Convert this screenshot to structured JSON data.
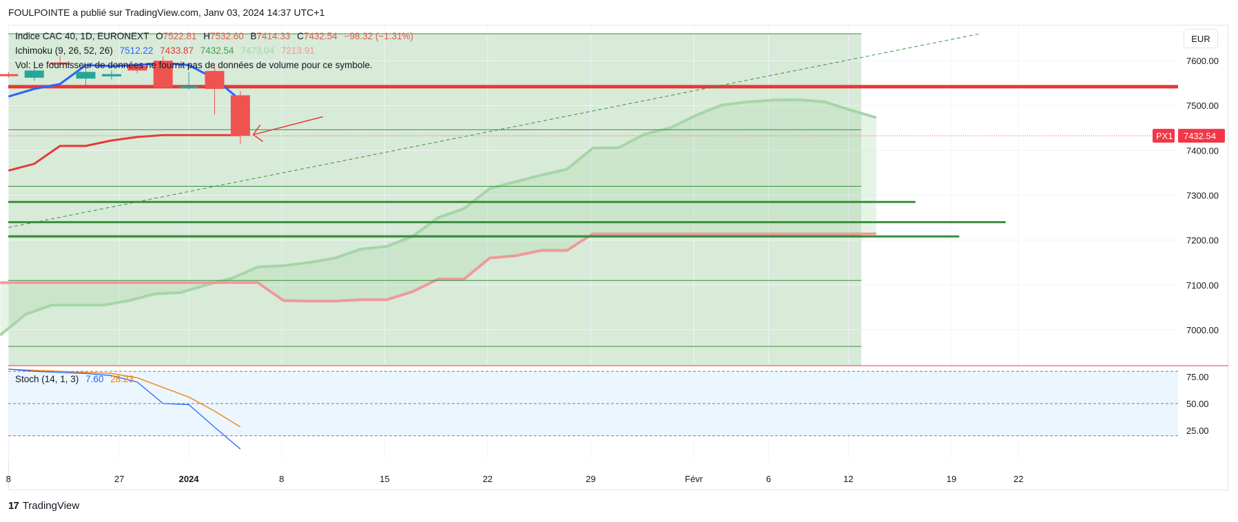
{
  "header": {
    "publisher_text": "FOULPOINTE a publié sur TradingView.com, Janv 03, 2024 14:37 UTC+1"
  },
  "legend": {
    "symbol": "Indice CAC 40, 1D, EURONEXT",
    "o_label": "O",
    "o_value": "7522.81",
    "h_label": "H",
    "h_value": "7532.60",
    "b_label": "B",
    "b_value": "7414.33",
    "c_label": "C",
    "c_value": "7432.54",
    "change": "−98.32 (−1.31%)",
    "ichimoku_label": "Ichimoku (9, 26, 52, 26)",
    "ichimoku_values": [
      "7512.22",
      "7433.87",
      "7432.54",
      "7473.04",
      "7213.91"
    ],
    "ichimoku_colors": [
      "#2962ff",
      "#e53935",
      "#43a047",
      "#a5d6a7",
      "#ef9a9a"
    ],
    "vol_text": "Vol: Le fournisseur de données ne fournit pas de données de volume pour ce symbole.",
    "stoch_label": "Stoch (14, 1, 3)",
    "stoch_k": "7.60",
    "stoch_d": "28.23"
  },
  "price_badge": {
    "tag": "PX1",
    "value": "7432.54"
  },
  "currency": "EUR",
  "footer": {
    "brand": "TradingView",
    "logo": "17"
  },
  "colors": {
    "up": "#26a69a",
    "down": "#ef5350",
    "tenkan": "#2962ff",
    "kijun": "#e53935",
    "span_a": "#a5d6a7",
    "span_b": "#ef9a9a",
    "hline": "#388e3c",
    "resistance": "#e53935",
    "stoch_k": "#2962ff",
    "stoch_d": "#f57c00"
  },
  "chart_data": {
    "type": "candlestick",
    "price_axis": {
      "range": [
        6920,
        7680
      ],
      "ticks": [
        "7600.00",
        "7500.00",
        "7400.00",
        "7300.00",
        "7200.00",
        "7100.00",
        "7000.00"
      ]
    },
    "time_axis": {
      "ticks": [
        "8",
        "27",
        "2024",
        "8",
        "15",
        "22",
        "29",
        "Févr",
        "6",
        "12",
        "19",
        "22"
      ]
    },
    "candles": [
      {
        "date": "2023-12-18",
        "o": 7570,
        "h": 7575,
        "l": 7562,
        "c": 7568
      },
      {
        "date": "2023-12-19",
        "o": 7562,
        "h": 7582,
        "l": 7555,
        "c": 7578
      },
      {
        "date": "2023-12-20",
        "o": 7596,
        "h": 7610,
        "l": 7585,
        "c": 7593
      },
      {
        "date": "2023-12-21",
        "o": 7560,
        "h": 7585,
        "l": 7545,
        "c": 7575
      },
      {
        "date": "2023-12-22",
        "o": 7565,
        "h": 7578,
        "l": 7558,
        "c": 7570
      },
      {
        "date": "2023-12-27",
        "o": 7588,
        "h": 7592,
        "l": 7572,
        "c": 7578
      },
      {
        "date": "2023-12-28",
        "o": 7600,
        "h": 7610,
        "l": 7538,
        "c": 7540
      },
      {
        "date": "2023-12-29",
        "o": 7543,
        "h": 7575,
        "l": 7535,
        "c": 7543
      },
      {
        "date": "2024-01-02",
        "o": 7577,
        "h": 7588,
        "l": 7480,
        "c": 7537
      },
      {
        "date": "2024-01-03",
        "o": 7522.81,
        "h": 7532.6,
        "l": 7414.33,
        "c": 7432.54
      }
    ],
    "ichimoku": {
      "tenkan": [
        7520,
        7537,
        7548,
        7590,
        7588,
        7590,
        7595,
        7590,
        7560,
        7512.22
      ],
      "kijun": [
        7355,
        7370,
        7410,
        7410,
        7422,
        7430,
        7433.87,
        7433.87,
        7433.87,
        7433.87
      ],
      "span_a": [
        6988,
        7035,
        7055,
        7055,
        7055,
        7065,
        7080,
        7083,
        7100,
        7115,
        7140,
        7143,
        7150,
        7160,
        7180,
        7186,
        7208,
        7250,
        7270,
        7315,
        7330,
        7345,
        7358,
        7405,
        7406,
        7436,
        7450,
        7478,
        7501,
        7508,
        7512,
        7513,
        7508,
        7490,
        7473.04
      ],
      "span_b": [
        7105,
        7105,
        7105,
        7105,
        7105,
        7105,
        7105,
        7105,
        7105,
        7105,
        7105,
        7065,
        7064,
        7064,
        7067,
        7067,
        7085,
        7113,
        7113,
        7160,
        7165,
        7177,
        7177,
        7213.91,
        7213.91,
        7213.91,
        7213.91,
        7213.91,
        7213.91,
        7213.91,
        7213.91,
        7213.91,
        7213.91,
        7213.91,
        7213.91
      ]
    },
    "horizontal_lines": [
      {
        "price": 7660,
        "style": "thin"
      },
      {
        "price": 7446,
        "style": "thin"
      },
      {
        "price": 7320,
        "style": "thin"
      },
      {
        "price": 7210,
        "style": "thin"
      },
      {
        "price": 7110,
        "style": "thin"
      },
      {
        "price": 6963,
        "style": "thin"
      },
      {
        "price": 7285,
        "style": "thick"
      },
      {
        "price": 7240,
        "style": "thick"
      },
      {
        "price": 7208,
        "style": "thick"
      }
    ],
    "resistance_line": {
      "price": 7542
    },
    "trend_line": {
      "from": [
        0,
        7228
      ],
      "to": [
        37.7,
        7660
      ]
    },
    "stochastic": {
      "axis_ticks": [
        "75.00",
        "50.00",
        "25.00"
      ],
      "k": [
        82,
        80,
        79,
        78,
        76,
        70,
        50,
        49,
        28,
        7.6
      ],
      "d": [
        82,
        81,
        80,
        79,
        78,
        74,
        65,
        56,
        43,
        28.23
      ]
    }
  }
}
